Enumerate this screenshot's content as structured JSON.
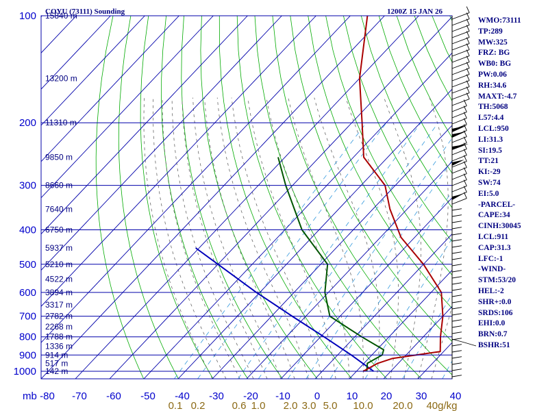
{
  "chart_data": {
    "type": "skew-t",
    "title_left": "COYU (73111) Sounding",
    "title_right": "1200Z 15 JAN 26",
    "pressure_levels": [
      100,
      200,
      300,
      400,
      500,
      600,
      700,
      800,
      900,
      1000
    ],
    "temperature_ticks": [
      -80,
      -70,
      -60,
      -50,
      -40,
      -30,
      -20,
      -10,
      0,
      10,
      20,
      30,
      40
    ],
    "temperature_tick_labels": [
      "-80",
      "-70",
      "-60",
      "-50",
      "-40",
      "-30",
      "-20",
      "-10",
      "0",
      "10",
      "20",
      "30",
      "40"
    ],
    "pressure_axis_unit": "mb",
    "mixing_ratio_labels": [
      "0.1",
      "0.2",
      "0.6",
      "1.0",
      "2.0",
      "3.0",
      "5.0",
      "10.0",
      "20.0",
      "40g/kg"
    ],
    "height_labels": [
      {
        "p": 100,
        "text": "15840 m"
      },
      {
        "p": 150,
        "text": "13200 m"
      },
      {
        "p": 200,
        "text": "11310 m"
      },
      {
        "p": 250,
        "text": "9850 m"
      },
      {
        "p": 300,
        "text": "8660 m"
      },
      {
        "p": 350,
        "text": "7640 m"
      },
      {
        "p": 400,
        "text": "6750 m"
      },
      {
        "p": 450,
        "text": "5937 m"
      },
      {
        "p": 500,
        "text": "5210 m"
      },
      {
        "p": 550,
        "text": "4522 m"
      },
      {
        "p": 600,
        "text": "3894 m"
      },
      {
        "p": 650,
        "text": "3317 m"
      },
      {
        "p": 700,
        "text": "2782 m"
      },
      {
        "p": 750,
        "text": "2268 m"
      },
      {
        "p": 800,
        "text": "1788 m"
      },
      {
        "p": 850,
        "text": "1336 m"
      },
      {
        "p": 900,
        "text": "914 m"
      },
      {
        "p": 950,
        "text": "517 m"
      },
      {
        "p": 1000,
        "text": "142 m"
      }
    ],
    "temperature_profile": [
      {
        "p": 1000,
        "t": 12
      },
      {
        "p": 950,
        "t": 14
      },
      {
        "p": 920,
        "t": 17
      },
      {
        "p": 880,
        "t": 29
      },
      {
        "p": 800,
        "t": 25
      },
      {
        "p": 700,
        "t": 20
      },
      {
        "p": 600,
        "t": 13
      },
      {
        "p": 500,
        "t": 0
      },
      {
        "p": 420,
        "t": -14
      },
      {
        "p": 350,
        "t": -25
      },
      {
        "p": 300,
        "t": -33
      },
      {
        "p": 250,
        "t": -47
      },
      {
        "p": 200,
        "t": -57
      },
      {
        "p": 150,
        "t": -70
      },
      {
        "p": 100,
        "t": -85
      }
    ],
    "dewpoint_profile": [
      {
        "p": 1000,
        "t": 13
      },
      {
        "p": 950,
        "t": 11
      },
      {
        "p": 900,
        "t": 13
      },
      {
        "p": 870,
        "t": 12
      },
      {
        "p": 800,
        "t": 2
      },
      {
        "p": 700,
        "t": -13
      },
      {
        "p": 600,
        "t": -21
      },
      {
        "p": 500,
        "t": -28
      },
      {
        "p": 400,
        "t": -45
      },
      {
        "p": 300,
        "t": -62
      },
      {
        "p": 250,
        "t": -72
      }
    ],
    "parcel_profile": [
      {
        "p": 1000,
        "t": 15
      },
      {
        "p": 900,
        "t": 4
      },
      {
        "p": 800,
        "t": -9
      },
      {
        "p": 700,
        "t": -24
      },
      {
        "p": 600,
        "t": -41
      },
      {
        "p": 500,
        "t": -60
      },
      {
        "p": 450,
        "t": -71
      }
    ],
    "colors": {
      "grid": "#0000aa",
      "dry_adiabat": "#00aa00",
      "moist_adiabat": "#666666",
      "mixing_ratio": "#3399dd",
      "temperature": "#aa0000",
      "dewpoint": "#005500",
      "parcel": "#0000bb",
      "barbs": "#000000"
    }
  },
  "stats": [
    "WMO:73111",
    "TP:289",
    "MW:325",
    "FRZ: BG",
    "WB0: BG",
    "PW:0.06",
    "RH:34.6",
    "MAXT:-4.7",
    "TH:5068",
    "L57:4.4",
    "LCL:950",
    "LI:31.3",
    "SI:19.5",
    "TT:21",
    "KI:-29",
    "SW:74",
    "EI:5.0",
    "-PARCEL-",
    "CAPE:34",
    "CINH:30045",
    "LCL:911",
    "CAP:31.3",
    "LFC:-1",
    "-WIND-",
    "STM:53/20",
    "HEL:-2",
    "SHR+:0.0",
    "SRDS:106",
    "EHI:0.0",
    "BRN:0.7",
    "BSHR:51"
  ]
}
